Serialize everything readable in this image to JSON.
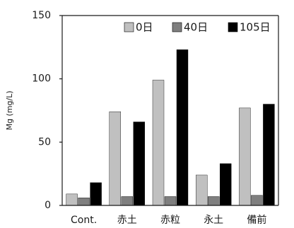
{
  "chart_data": {
    "type": "bar",
    "title": "",
    "xlabel": "",
    "ylabel": "Mg (mg/L)",
    "ylim": [
      0,
      150
    ],
    "yticks": [
      0,
      50,
      100,
      150
    ],
    "grid": false,
    "legend_position": "top-right",
    "categories": [
      "Cont.",
      "赤土",
      "赤粒",
      "永土",
      "備前"
    ],
    "series": [
      {
        "name": "0日",
        "color": "#c0c0c0",
        "values": [
          9,
          74,
          99,
          24,
          77
        ]
      },
      {
        "name": "40日",
        "color": "#7f7f7f",
        "values": [
          6,
          7,
          7,
          7,
          8
        ]
      },
      {
        "name": "105日",
        "color": "#000000",
        "values": [
          18,
          66,
          123,
          33,
          80
        ]
      }
    ]
  }
}
